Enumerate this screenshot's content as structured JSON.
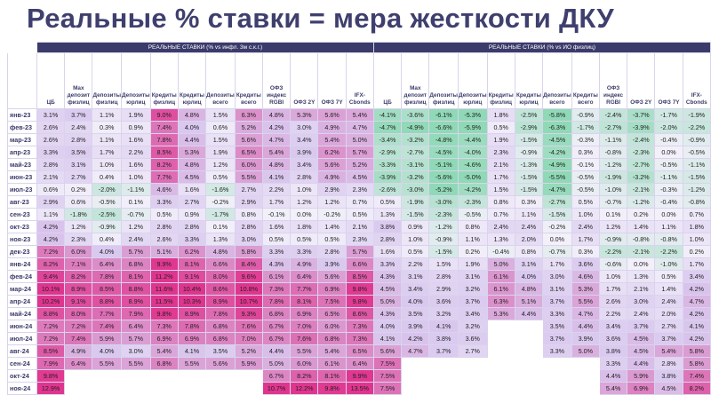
{
  "title": "Реальные % ставки = мера жесткости ДКУ",
  "groups": {
    "left": "РЕАЛЬНЫЕ СТАВКИ (% vs инфл. 3м с.к.г.)",
    "right": "РЕАЛЬНЫЕ СТАВКИ (% vs ИО физлиц)"
  },
  "columns_left": [
    "ЦБ",
    "Max депозит физлиц",
    "Депозиты физлиц",
    "Депозиты юрлиц",
    "Кредиты физлиц",
    "Кредиты юрлиц",
    "Депозиты всего",
    "Кредиты всего",
    "ОФЗ индекс RGBI",
    "ОФЗ 2Y",
    "ОФЗ 7Y",
    "IFX-Cbonds"
  ],
  "columns_right": [
    "ЦБ",
    "Max депозит физлиц",
    "Депозиты физлиц",
    "Депозиты юрлиц",
    "Кредиты физлиц",
    "Кредиты юрлиц",
    "Депозиты всего",
    "Кредиты всего",
    "ОФЗ индекс RGBI",
    "ОФЗ 2Y",
    "ОФЗ 7Y",
    "IFX-Cbonds"
  ],
  "rows": [
    {
      "date": "янв-23",
      "left": [
        "3.1%",
        "3.7%",
        "1.1%",
        "1.9%",
        "9.0%",
        "4.8%",
        "1.5%",
        "6.3%",
        "4.8%",
        "5.3%",
        "5.6%",
        "5.4%"
      ],
      "right": [
        "-4.1%",
        "-3.6%",
        "-6.1%",
        "-5.3%",
        "1.8%",
        "-2.5%",
        "-5.8%",
        "-0.9%",
        "-2.4%",
        "-3.7%",
        "-1.7%",
        "-1.9%"
      ]
    },
    {
      "date": "фев-23",
      "left": [
        "2.6%",
        "2.4%",
        "0.3%",
        "0.9%",
        "7.4%",
        "4.0%",
        "0.6%",
        "5.2%",
        "4.2%",
        "3.0%",
        "4.9%",
        "4.7%"
      ],
      "right": [
        "-4.7%",
        "-4.9%",
        "-6.6%",
        "-5.9%",
        "0.5%",
        "-2.9%",
        "-6.3%",
        "-1.7%",
        "-2.7%",
        "-3.9%",
        "-2.0%",
        "-2.2%"
      ]
    },
    {
      "date": "мар-23",
      "left": [
        "2.6%",
        "2.8%",
        "1.1%",
        "1.6%",
        "7.8%",
        "4.4%",
        "1.5%",
        "5.6%",
        "4.7%",
        "3.4%",
        "5.4%",
        "5.0%"
      ],
      "right": [
        "-3.4%",
        "-3.2%",
        "-4.8%",
        "-4.4%",
        "1.9%",
        "-1.5%",
        "-4.5%",
        "-0.3%",
        "-1.1%",
        "-2.4%",
        "-0.4%",
        "-0.9%"
      ]
    },
    {
      "date": "апр-23",
      "left": [
        "3.3%",
        "3.5%",
        "1.7%",
        "2.2%",
        "8.5%",
        "5.3%",
        "1.9%",
        "6.5%",
        "5.4%",
        "3.9%",
        "6.2%",
        "5.7%"
      ],
      "right": [
        "-2.9%",
        "-2.7%",
        "-4.5%",
        "-4.0%",
        "2.3%",
        "-0.9%",
        "-4.2%",
        "0.3%",
        "-0.8%",
        "-2.3%",
        "0.0%",
        "-0.5%"
      ]
    },
    {
      "date": "май-23",
      "left": [
        "2.8%",
        "3.1%",
        "1.0%",
        "1.6%",
        "8.2%",
        "4.8%",
        "1.2%",
        "6.0%",
        "4.8%",
        "3.4%",
        "5.6%",
        "5.2%"
      ],
      "right": [
        "-3.3%",
        "-3.1%",
        "-5.1%",
        "-4.6%",
        "2.1%",
        "-1.3%",
        "-4.9%",
        "-0.1%",
        "-1.2%",
        "-2.7%",
        "-0.5%",
        "-1.1%"
      ]
    },
    {
      "date": "июн-23",
      "left": [
        "2.1%",
        "2.7%",
        "0.4%",
        "1.0%",
        "7.7%",
        "4.5%",
        "0.5%",
        "5.5%",
        "4.1%",
        "2.8%",
        "4.9%",
        "4.5%"
      ],
      "right": [
        "-3.9%",
        "-3.2%",
        "-5.6%",
        "-5.0%",
        "1.7%",
        "-1.5%",
        "-5.5%",
        "-0.5%",
        "-1.9%",
        "-3.2%",
        "-1.1%",
        "-1.5%"
      ]
    },
    {
      "date": "июл-23",
      "left": [
        "0.6%",
        "0.2%",
        "-2.0%",
        "-1.1%",
        "4.6%",
        "1.6%",
        "-1.6%",
        "2.7%",
        "2.2%",
        "1.0%",
        "2.9%",
        "2.3%"
      ],
      "right": [
        "-2.6%",
        "-3.0%",
        "-5.2%",
        "-4.2%",
        "1.5%",
        "-1.5%",
        "-4.7%",
        "-0.5%",
        "-1.0%",
        "-2.1%",
        "-0.3%",
        "-1.2%"
      ]
    },
    {
      "date": "авг-23",
      "left": [
        "2.9%",
        "0.6%",
        "-0.5%",
        "0.1%",
        "3.3%",
        "2.7%",
        "-0.2%",
        "2.9%",
        "1.7%",
        "1.2%",
        "1.2%",
        "0.7%"
      ],
      "right": [
        "0.5%",
        "-1.9%",
        "-3.0%",
        "-2.3%",
        "0.8%",
        "0.3%",
        "-2.7%",
        "0.5%",
        "-0.7%",
        "-1.2%",
        "-0.4%",
        "-0.8%"
      ]
    },
    {
      "date": "сен-23",
      "left": [
        "1.1%",
        "-1.8%",
        "-2.5%",
        "-0.7%",
        "0.5%",
        "0.9%",
        "-1.7%",
        "0.8%",
        "-0.1%",
        "0.0%",
        "-0.2%",
        "0.5%"
      ],
      "right": [
        "1.3%",
        "-1.5%",
        "-2.3%",
        "-0.5%",
        "0.7%",
        "1.1%",
        "-1.5%",
        "1.0%",
        "0.1%",
        "0.2%",
        "0.0%",
        "0.7%"
      ]
    },
    {
      "date": "окт-23",
      "left": [
        "4.2%",
        "1.2%",
        "-0.9%",
        "1.2%",
        "2.8%",
        "2.8%",
        "0.1%",
        "2.8%",
        "1.6%",
        "1.8%",
        "1.4%",
        "2.1%"
      ],
      "right": [
        "3.8%",
        "0.9%",
        "-1.2%",
        "0.8%",
        "2.4%",
        "2.4%",
        "-0.2%",
        "2.4%",
        "1.2%",
        "1.4%",
        "1.1%",
        "1.8%"
      ]
    },
    {
      "date": "ноя-23",
      "left": [
        "4.2%",
        "2.3%",
        "0.4%",
        "2.4%",
        "2.6%",
        "3.3%",
        "1.3%",
        "3.0%",
        "0.5%",
        "0.5%",
        "0.5%",
        "2.3%"
      ],
      "right": [
        "2.8%",
        "1.0%",
        "-0.9%",
        "1.1%",
        "1.3%",
        "2.0%",
        "0.0%",
        "1.7%",
        "-0.9%",
        "-0.8%",
        "-0.8%",
        "1.0%"
      ]
    },
    {
      "date": "дек-23",
      "left": [
        "7.2%",
        "6.0%",
        "4.0%",
        "5.7%",
        "5.1%",
        "6.2%",
        "4.8%",
        "5.8%",
        "3.3%",
        "3.3%",
        "2.8%",
        "5.7%"
      ],
      "right": [
        "1.6%",
        "0.5%",
        "-1.5%",
        "0.2%",
        "-0.4%",
        "0.8%",
        "-0.7%",
        "0.3%",
        "-2.2%",
        "-2.1%",
        "-2.2%",
        "0.2%"
      ]
    },
    {
      "date": "янв-24",
      "left": [
        "8.2%",
        "7.1%",
        "6.4%",
        "6.8%",
        "9.9%",
        "8.1%",
        "6.6%",
        "8.4%",
        "4.3%",
        "4.9%",
        "3.9%",
        "6.6%"
      ],
      "right": [
        "3.3%",
        "2.2%",
        "1.5%",
        "1.9%",
        "5.0%",
        "3.1%",
        "1.7%",
        "3.6%",
        "-0.6%",
        "0.0%",
        "-1.0%",
        "1.7%"
      ]
    },
    {
      "date": "фев-24",
      "left": [
        "9.4%",
        "8.2%",
        "7.8%",
        "8.1%",
        "11.2%",
        "9.1%",
        "8.0%",
        "9.6%",
        "6.1%",
        "6.4%",
        "5.6%",
        "8.5%"
      ],
      "right": [
        "4.3%",
        "3.1%",
        "2.8%",
        "3.1%",
        "6.1%",
        "4.0%",
        "3.0%",
        "4.6%",
        "1.0%",
        "1.3%",
        "0.5%",
        "3.4%"
      ]
    },
    {
      "date": "мар-24",
      "left": [
        "10.1%",
        "8.9%",
        "8.5%",
        "8.8%",
        "11.6%",
        "10.4%",
        "8.6%",
        "10.8%",
        "7.3%",
        "7.7%",
        "6.9%",
        "9.8%"
      ],
      "right": [
        "4.5%",
        "3.4%",
        "2.9%",
        "3.2%",
        "6.1%",
        "4.8%",
        "3.1%",
        "5.3%",
        "1.7%",
        "2.1%",
        "1.4%",
        "4.2%"
      ]
    },
    {
      "date": "апр-24",
      "left": [
        "10.2%",
        "9.1%",
        "8.8%",
        "8.9%",
        "11.5%",
        "10.3%",
        "8.9%",
        "10.7%",
        "7.8%",
        "8.1%",
        "7.5%",
        "9.8%"
      ],
      "right": [
        "5.0%",
        "4.0%",
        "3.6%",
        "3.7%",
        "6.3%",
        "5.1%",
        "3.7%",
        "5.5%",
        "2.6%",
        "3.0%",
        "2.4%",
        "4.7%"
      ]
    },
    {
      "date": "май-24",
      "left": [
        "8.8%",
        "8.0%",
        "7.7%",
        "7.9%",
        "9.8%",
        "8.9%",
        "7.8%",
        "9.3%",
        "6.8%",
        "6.9%",
        "6.5%",
        "8.6%"
      ],
      "right": [
        "4.3%",
        "3.5%",
        "3.2%",
        "3.4%",
        "5.3%",
        "4.4%",
        "3.3%",
        "4.7%",
        "2.2%",
        "2.4%",
        "2.0%",
        "4.2%"
      ]
    },
    {
      "date": "июн-24",
      "left": [
        "7.2%",
        "7.2%",
        "7.4%",
        "6.4%",
        "7.3%",
        "7.8%",
        "6.8%",
        "7.6%",
        "6.7%",
        "7.0%",
        "6.0%",
        "7.3%"
      ],
      "right": [
        "4.0%",
        "3.9%",
        "4.1%",
        "3.2%",
        "",
        "",
        "3.5%",
        "4.4%",
        "3.4%",
        "3.7%",
        "2.7%",
        "4.1%"
      ]
    },
    {
      "date": "июл-24",
      "left": [
        "7.2%",
        "7.4%",
        "5.9%",
        "5.7%",
        "6.9%",
        "6.9%",
        "6.8%",
        "7.0%",
        "6.7%",
        "7.6%",
        "6.8%",
        "7.3%"
      ],
      "right": [
        "4.1%",
        "4.2%",
        "3.8%",
        "3.6%",
        "",
        "",
        "3.7%",
        "3.9%",
        "3.6%",
        "4.5%",
        "3.7%",
        "4.2%"
      ]
    },
    {
      "date": "авг-24",
      "left": [
        "8.5%",
        "4.9%",
        "4.0%",
        "3.0%",
        "5.4%",
        "4.1%",
        "3.5%",
        "5.2%",
        "4.4%",
        "5.5%",
        "5.4%",
        "6.5%"
      ],
      "right": [
        "5.6%",
        "4.7%",
        "3.7%",
        "2.7%",
        "",
        "",
        "3.3%",
        "5.0%",
        "3.8%",
        "4.5%",
        "5.4%",
        "5.8%"
      ]
    },
    {
      "date": "сен-24",
      "left": [
        "7.9%",
        "6.4%",
        "5.5%",
        "5.5%",
        "6.8%",
        "5.5%",
        "5.6%",
        "5.9%",
        "5.0%",
        "6.0%",
        "6.1%",
        "6.4%"
      ],
      "right": [
        "7.5%",
        "",
        "",
        "",
        "",
        "",
        "",
        "",
        "3.3%",
        "4.4%",
        "2.8%",
        "5.8%"
      ]
    },
    {
      "date": "окт-24",
      "left": [
        "9.8%",
        "",
        "",
        "",
        "",
        "",
        "",
        "",
        "6.7%",
        "8.2%",
        "8.1%",
        "9.9%"
      ],
      "right": [
        "7.5%",
        "",
        "",
        "",
        "",
        "",
        "",
        "",
        "4.4%",
        "5.9%",
        "3.8%",
        "7.4%"
      ]
    },
    {
      "date": "ноя-24",
      "left": [
        "12.9%",
        "",
        "",
        "",
        "",
        "",
        "",
        "",
        "10.7%",
        "12.2%",
        "9.8%",
        "13.5%"
      ],
      "right": [
        "7.5%",
        "",
        "",
        "",
        "",
        "",
        "",
        "",
        "5.4%",
        "6.9%",
        "4.5%",
        "8.2%"
      ]
    }
  ],
  "colors": {
    "neg": "#8fd9b6",
    "zero": "#f3f0fa",
    "mid": "#d9c8ef",
    "pos": "#e0358f",
    "header": "#3b3b6b",
    "title": "#3f3f6f"
  }
}
